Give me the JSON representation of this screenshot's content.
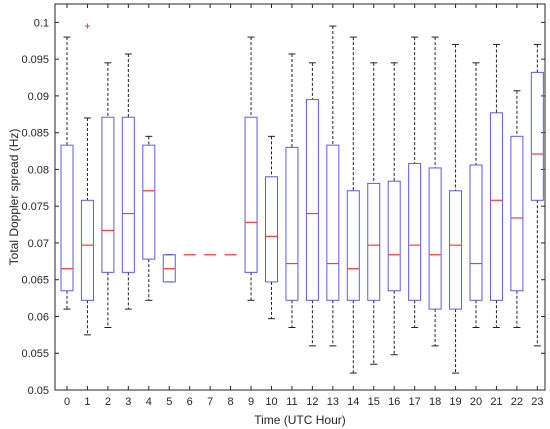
{
  "chart_data": {
    "type": "boxplot",
    "xlabel": "Time (UTC Hour)",
    "ylabel": "Total Doppler spread (Hz)",
    "ylim": [
      0.05,
      0.1025
    ],
    "yticks": [
      0.05,
      0.055,
      0.06,
      0.065,
      0.07,
      0.075,
      0.08,
      0.085,
      0.09,
      0.095,
      0.1
    ],
    "ytick_labels": [
      "0.05",
      "0.055",
      "0.06",
      "0.065",
      "0.07",
      "0.075",
      "0.08",
      "0.085",
      "0.09",
      "0.095",
      "0.1"
    ],
    "categories": [
      "0",
      "1",
      "2",
      "3",
      "4",
      "5",
      "6",
      "7",
      "8",
      "9",
      "10",
      "11",
      "12",
      "13",
      "14",
      "15",
      "16",
      "17",
      "18",
      "19",
      "20",
      "21",
      "22",
      "23"
    ],
    "grid": false,
    "colors": {
      "box": "#5a5aff",
      "median": "#ff3a3a",
      "whisker": "#222222",
      "outlier": "#ff3a3a",
      "axis": "#262626"
    },
    "boxes": [
      {
        "x": "0",
        "lower_whisker": 0.061,
        "q1": 0.0635,
        "median": 0.0665,
        "q3": 0.0833,
        "upper_whisker": 0.098
      },
      {
        "x": "1",
        "lower_whisker": 0.0575,
        "q1": 0.0622,
        "median": 0.0697,
        "q3": 0.0758,
        "upper_whisker": 0.087,
        "outliers": [
          0.0995
        ]
      },
      {
        "x": "2",
        "lower_whisker": 0.0585,
        "q1": 0.066,
        "median": 0.0717,
        "q3": 0.0871,
        "upper_whisker": 0.0945
      },
      {
        "x": "3",
        "lower_whisker": 0.061,
        "q1": 0.066,
        "median": 0.074,
        "q3": 0.0871,
        "upper_whisker": 0.0957
      },
      {
        "x": "4",
        "lower_whisker": 0.0622,
        "q1": 0.0678,
        "median": 0.0771,
        "q3": 0.0833,
        "upper_whisker": 0.0845
      },
      {
        "x": "5",
        "lower_whisker": 0.0647,
        "q1": 0.0647,
        "median": 0.0665,
        "q3": 0.0684,
        "upper_whisker": 0.0684
      },
      {
        "x": "6",
        "lower_whisker": 0.0684,
        "q1": 0.0684,
        "median": 0.0684,
        "q3": 0.0684,
        "upper_whisker": 0.0684
      },
      {
        "x": "7",
        "lower_whisker": 0.0684,
        "q1": 0.0684,
        "median": 0.0684,
        "q3": 0.0684,
        "upper_whisker": 0.0684
      },
      {
        "x": "8",
        "lower_whisker": 0.0684,
        "q1": 0.0684,
        "median": 0.0684,
        "q3": 0.0684,
        "upper_whisker": 0.0684
      },
      {
        "x": "9",
        "lower_whisker": 0.0622,
        "q1": 0.066,
        "median": 0.0728,
        "q3": 0.0871,
        "upper_whisker": 0.098
      },
      {
        "x": "10",
        "lower_whisker": 0.0597,
        "q1": 0.0647,
        "median": 0.0709,
        "q3": 0.079,
        "upper_whisker": 0.0845
      },
      {
        "x": "11",
        "lower_whisker": 0.0585,
        "q1": 0.0622,
        "median": 0.0672,
        "q3": 0.083,
        "upper_whisker": 0.0957
      },
      {
        "x": "12",
        "lower_whisker": 0.056,
        "q1": 0.0622,
        "median": 0.074,
        "q3": 0.0895,
        "upper_whisker": 0.0945
      },
      {
        "x": "13",
        "lower_whisker": 0.056,
        "q1": 0.0622,
        "median": 0.0672,
        "q3": 0.0833,
        "upper_whisker": 0.0995
      },
      {
        "x": "14",
        "lower_whisker": 0.0523,
        "q1": 0.0622,
        "median": 0.0665,
        "q3": 0.0771,
        "upper_whisker": 0.098
      },
      {
        "x": "15",
        "lower_whisker": 0.0535,
        "q1": 0.0622,
        "median": 0.0697,
        "q3": 0.0781,
        "upper_whisker": 0.0945
      },
      {
        "x": "16",
        "lower_whisker": 0.0548,
        "q1": 0.0635,
        "median": 0.0684,
        "q3": 0.0784,
        "upper_whisker": 0.0945
      },
      {
        "x": "17",
        "lower_whisker": 0.0585,
        "q1": 0.0622,
        "median": 0.0697,
        "q3": 0.0808,
        "upper_whisker": 0.098
      },
      {
        "x": "18",
        "lower_whisker": 0.056,
        "q1": 0.061,
        "median": 0.0684,
        "q3": 0.0802,
        "upper_whisker": 0.098
      },
      {
        "x": "19",
        "lower_whisker": 0.0523,
        "q1": 0.061,
        "median": 0.0697,
        "q3": 0.0771,
        "upper_whisker": 0.097
      },
      {
        "x": "20",
        "lower_whisker": 0.0585,
        "q1": 0.0622,
        "median": 0.0672,
        "q3": 0.0806,
        "upper_whisker": 0.0945
      },
      {
        "x": "21",
        "lower_whisker": 0.0585,
        "q1": 0.0622,
        "median": 0.0758,
        "q3": 0.0877,
        "upper_whisker": 0.097
      },
      {
        "x": "22",
        "lower_whisker": 0.0585,
        "q1": 0.0635,
        "median": 0.0734,
        "q3": 0.0845,
        "upper_whisker": 0.0907
      },
      {
        "x": "23",
        "lower_whisker": 0.056,
        "q1": 0.0758,
        "median": 0.0821,
        "q3": 0.0932,
        "upper_whisker": 0.097
      }
    ]
  }
}
